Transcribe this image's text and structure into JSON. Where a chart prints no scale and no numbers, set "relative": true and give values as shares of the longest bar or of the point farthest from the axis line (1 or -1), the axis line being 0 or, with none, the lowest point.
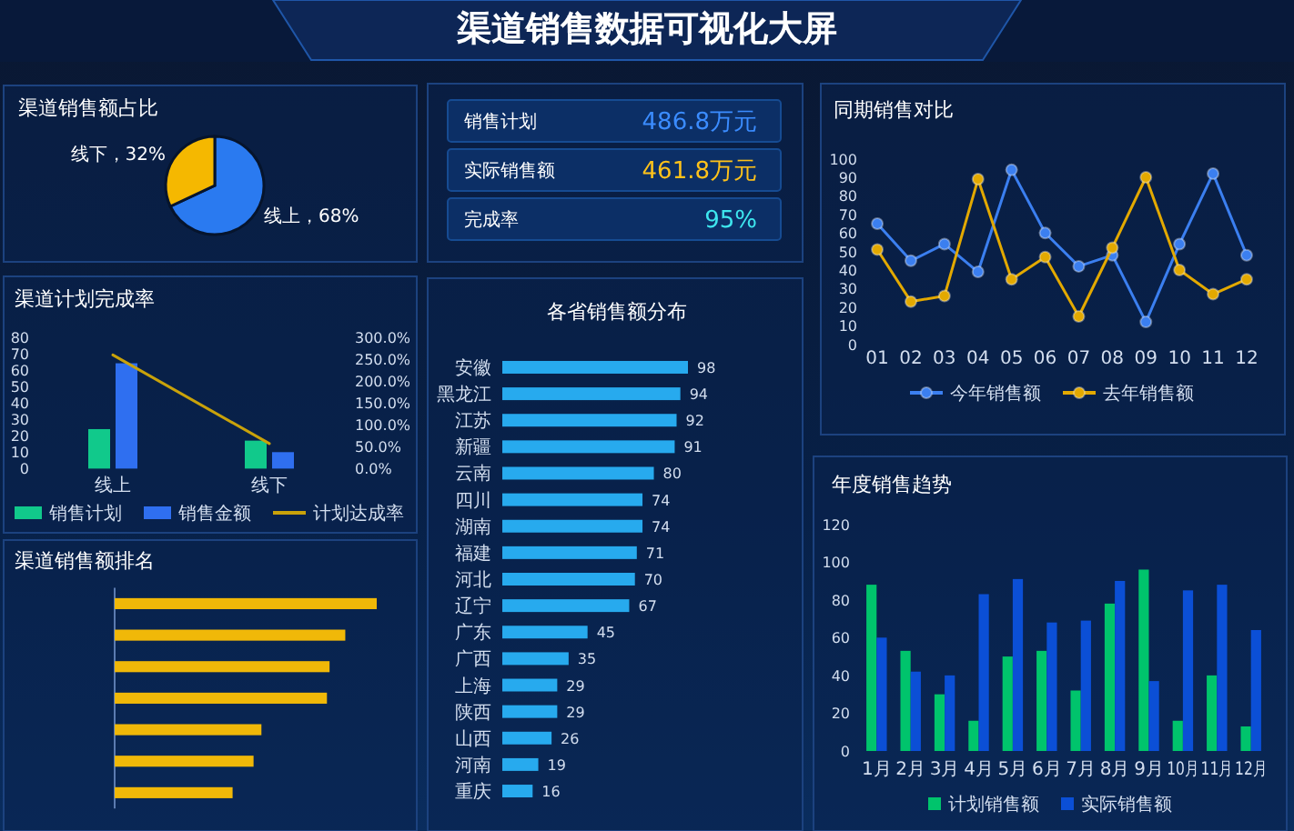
{
  "chart_data": [
    {
      "type": "other",
      "title": "渠道销售数据可视化大屏"
    },
    {
      "type": "pie",
      "title": "渠道销售额占比",
      "categories": [
        "线上",
        "线下"
      ],
      "values": [
        68,
        32
      ],
      "colors": [
        "#2a7af0",
        "#f5b800"
      ],
      "value_labels": [
        "，68%",
        "，32%"
      ]
    },
    {
      "type": "other",
      "annotations": [
        "销售计划",
        "486.8万元",
        "实际销售额",
        "461.8万元",
        "完成率",
        "95%"
      ],
      "colors": [
        "#3b8cff",
        "#ffc21a",
        "#3ee6ee"
      ]
    },
    {
      "type": "line",
      "title": "同期销售对比",
      "categories": [
        "01",
        "02",
        "03",
        "04",
        "05",
        "06",
        "07",
        "08",
        "09",
        "10",
        "11",
        "12"
      ],
      "series": [
        {
          "name": "今年销售额",
          "color": "#3b7ff0",
          "values": [
            65,
            45,
            54,
            39,
            94,
            60,
            42,
            48,
            12,
            54,
            92,
            48
          ]
        },
        {
          "name": "去年销售额",
          "color": "#e3a900",
          "values": [
            51,
            23,
            26,
            89,
            35,
            47,
            15,
            52,
            90,
            40,
            27,
            35
          ]
        }
      ],
      "ylim": [
        0,
        100
      ],
      "yticks": [
        0,
        10,
        20,
        30,
        40,
        50,
        60,
        70,
        80,
        90,
        100
      ],
      "marker": "circle",
      "legend": "bottom"
    },
    {
      "type": "bar",
      "title": "渠道计划完成率",
      "categories": [
        "线上",
        "线下"
      ],
      "series": [
        {
          "name": "销售计划",
          "color": "#11c98b",
          "values": [
            24,
            17
          ]
        },
        {
          "name": "销售金额",
          "color": "#2f6ff0",
          "values": [
            64,
            10
          ]
        },
        {
          "name": "计划达成率",
          "type": "line",
          "axis": "y2",
          "color": "#c9a20a",
          "values": [
            259,
            57
          ]
        }
      ],
      "ylim": [
        0,
        80
      ],
      "yticks": [
        0,
        10,
        20,
        30,
        40,
        50,
        60,
        70,
        80
      ],
      "y2lim": [
        0,
        300
      ],
      "y2ticks": [
        {
          "value": 0,
          "label": "0.0%"
        },
        {
          "value": 50,
          "label": "50.0%"
        },
        {
          "value": 100,
          "label": "100.0%"
        },
        {
          "value": 150,
          "label": "150.0%"
        },
        {
          "value": 200,
          "label": "200.0%"
        },
        {
          "value": 250,
          "label": "250.0%"
        },
        {
          "value": 300,
          "label": "300.0%"
        }
      ],
      "legend": "bottom"
    },
    {
      "type": "bar",
      "orientation": "horizontal",
      "title": "各省销售额分布",
      "categories": [
        "安徽",
        "黑龙江",
        "江苏",
        "新疆",
        "云南",
        "四川",
        "湖南",
        "福建",
        "河北",
        "辽宁",
        "广东",
        "广西",
        "上海",
        "陕西",
        "山西",
        "河南",
        "重庆"
      ],
      "values": [
        98,
        94,
        92,
        91,
        80,
        74,
        74,
        71,
        70,
        67,
        45,
        35,
        29,
        29,
        26,
        19,
        16
      ],
      "color": "#27aaee",
      "data_labels": true
    },
    {
      "type": "bar",
      "title": "年度销售趋势",
      "categories": [
        "1月",
        "2月",
        "3月",
        "4月",
        "5月",
        "6月",
        "7月",
        "8月",
        "9月",
        "10月",
        "11月",
        "12月"
      ],
      "series": [
        {
          "name": "计划销售额",
          "color": "#00c46c",
          "values": [
            88,
            53,
            30,
            16,
            50,
            53,
            32,
            78,
            96,
            16,
            40,
            13
          ]
        },
        {
          "name": "实际销售额",
          "color": "#0b4fd6",
          "values": [
            60,
            42,
            40,
            83,
            91,
            68,
            69,
            90,
            37,
            85,
            88,
            64
          ]
        }
      ],
      "ylim": [
        0,
        120
      ],
      "yticks": [
        0,
        20,
        40,
        60,
        80,
        100,
        120
      ],
      "legend": "bottom"
    },
    {
      "type": "bar",
      "orientation": "horizontal",
      "title": "渠道销售额排名",
      "categories": [
        null,
        null,
        null,
        null,
        null,
        null,
        null
      ],
      "values": [
        1,
        0.88,
        0.82,
        0.81,
        0.56,
        0.53,
        0.45
      ],
      "relative": true,
      "color": "#f0b808"
    }
  ]
}
